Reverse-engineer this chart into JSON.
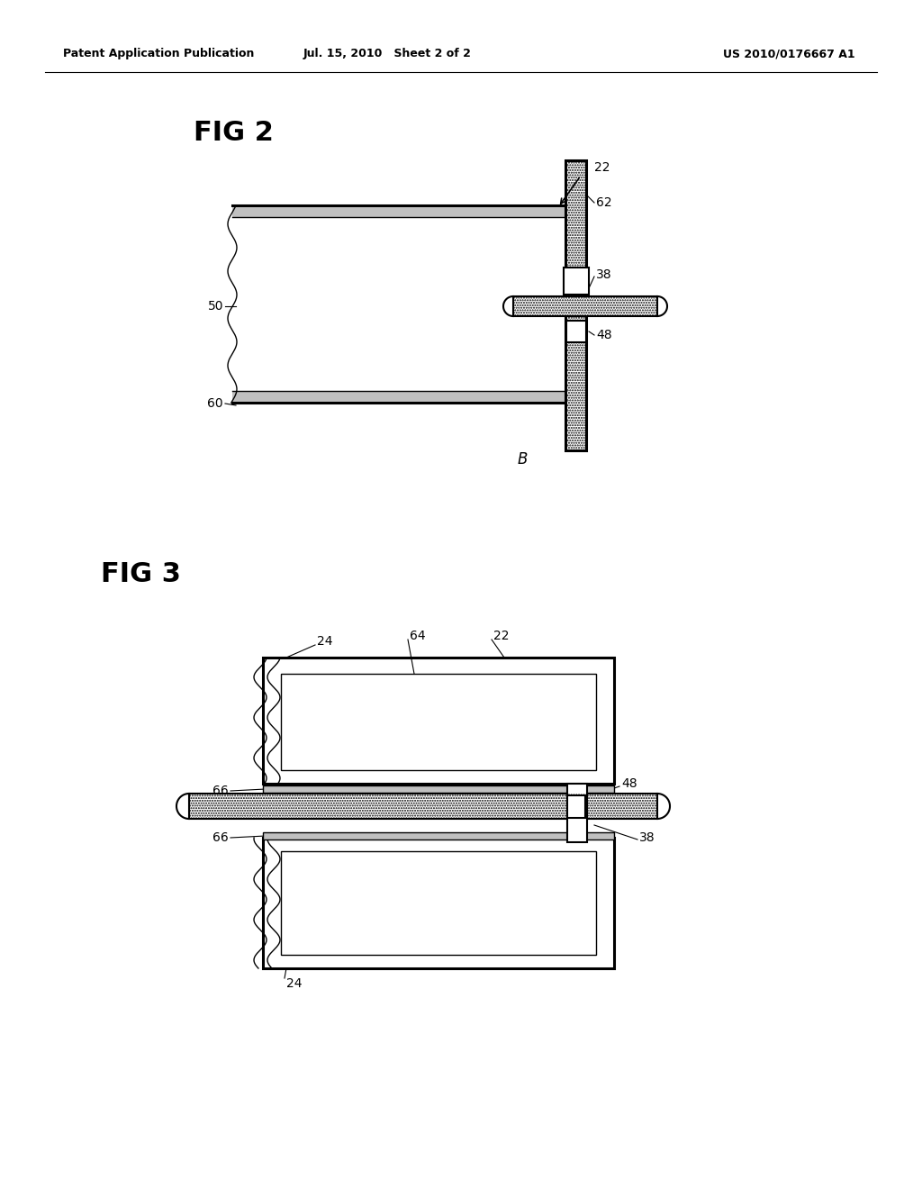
{
  "bg_color": "#ffffff",
  "header_left": "Patent Application Publication",
  "header_mid": "Jul. 15, 2010   Sheet 2 of 2",
  "header_right": "US 2010/0176667 A1",
  "fig2_title": "FIG 2",
  "fig3_title": "FIG 3"
}
